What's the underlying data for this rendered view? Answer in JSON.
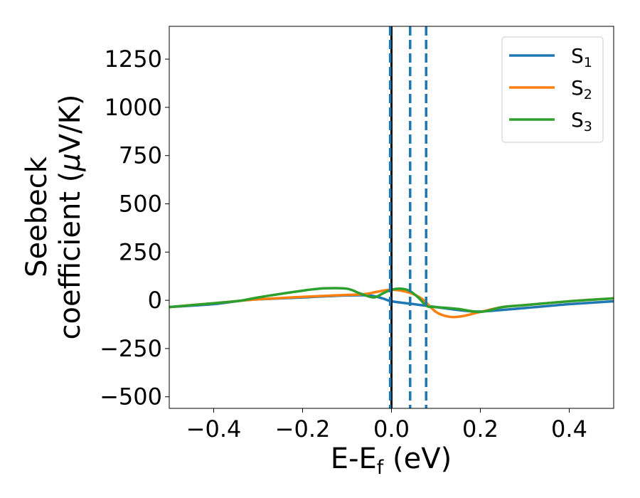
{
  "chart_data": {
    "type": "line",
    "xlabel": "E-E",
    "xlabel_sub": "f",
    "xlabel_unit": " (eV)",
    "ylabel_line1": "Seebeck",
    "ylabel_line2": "coefficient  (",
    "ylabel_mu": "μ",
    "ylabel_unit": "V/K)",
    "xlim": [
      -0.5,
      0.5
    ],
    "ylim": [
      -560,
      1420
    ],
    "xticks": [
      -0.4,
      -0.2,
      0.0,
      0.2,
      0.4
    ],
    "xtick_labels": [
      "−0.4",
      "−0.2",
      "0.0",
      "0.2",
      "0.4"
    ],
    "yticks": [
      -500,
      -250,
      0,
      250,
      500,
      750,
      1000,
      1250
    ],
    "ytick_labels": [
      "−500",
      "−250",
      "0",
      "250",
      "500",
      "750",
      "1000",
      "1250"
    ],
    "grid": false,
    "legend_position": "top-right",
    "vertical_lines": [
      {
        "x": 0.0,
        "style": "solid",
        "color": "#000000"
      },
      {
        "x": -0.003,
        "style": "dashed",
        "color": "#1f77b4"
      },
      {
        "x": 0.042,
        "style": "dashed",
        "color": "#1f77b4"
      },
      {
        "x": 0.078,
        "style": "dashed",
        "color": "#1f77b4"
      }
    ],
    "series": [
      {
        "name": "S",
        "sub": "1",
        "color": "#1f77b4",
        "x": [
          -0.5,
          -0.4,
          -0.34,
          -0.3,
          -0.2,
          -0.1,
          -0.05,
          -0.02,
          0.0,
          0.05,
          0.1,
          0.15,
          0.2,
          0.3,
          0.4,
          0.5
        ],
        "y": [
          -35,
          -20,
          -2,
          5,
          15,
          25,
          25,
          10,
          -5,
          -20,
          -35,
          -50,
          -58,
          -40,
          -20,
          -5
        ]
      },
      {
        "name": "S",
        "sub": "2",
        "color": "#ff7f0e",
        "x": [
          -0.5,
          -0.4,
          -0.34,
          -0.3,
          -0.2,
          -0.1,
          -0.06,
          -0.03,
          0.0,
          0.04,
          0.07,
          0.1,
          0.13,
          0.16,
          0.2,
          0.25,
          0.3,
          0.4,
          0.5
        ],
        "y": [
          -35,
          -15,
          -2,
          5,
          18,
          28,
          32,
          45,
          55,
          40,
          5,
          -60,
          -85,
          -82,
          -60,
          -35,
          -25,
          -5,
          10
        ]
      },
      {
        "name": "S",
        "sub": "3",
        "color": "#2ca02c",
        "x": [
          -0.5,
          -0.4,
          -0.34,
          -0.3,
          -0.2,
          -0.15,
          -0.1,
          -0.07,
          -0.04,
          -0.02,
          0.0,
          0.02,
          0.04,
          0.06,
          0.08,
          0.1,
          0.15,
          0.2,
          0.25,
          0.3,
          0.4,
          0.5
        ],
        "y": [
          -35,
          -15,
          -2,
          15,
          50,
          62,
          60,
          35,
          15,
          35,
          55,
          60,
          50,
          15,
          -30,
          -35,
          -45,
          -60,
          -35,
          -25,
          -5,
          10
        ]
      }
    ]
  }
}
